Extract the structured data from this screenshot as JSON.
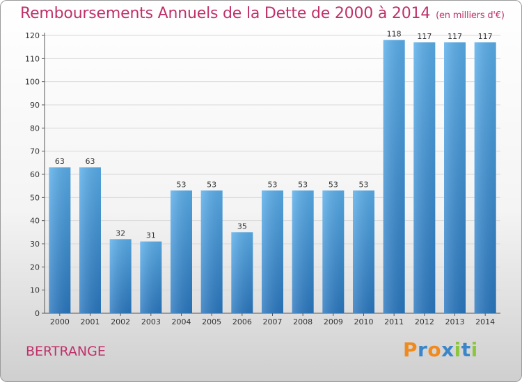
{
  "title": "Remboursements Annuels de la Dette de 2000 à 2014",
  "unit": "(en milliers d'€)",
  "place": "BERTRANGE",
  "logo": {
    "letters": [
      "P",
      "r",
      "o",
      "x",
      "i",
      "t",
      "i"
    ],
    "colors": [
      "#f08a1c",
      "#3a86c8",
      "#f08a1c",
      "#3a86c8",
      "#8cc63f",
      "#3a86c8",
      "#8cc63f"
    ]
  },
  "chart_data": {
    "type": "bar",
    "title": "Remboursements Annuels de la Dette de 2000 à 2014",
    "subtitle": "(en milliers d'€)",
    "xlabel": "",
    "ylabel": "",
    "categories": [
      "2000",
      "2001",
      "2002",
      "2003",
      "2004",
      "2005",
      "2006",
      "2007",
      "2008",
      "2009",
      "2010",
      "2011",
      "2012",
      "2013",
      "2014"
    ],
    "values": [
      63,
      63,
      32,
      31,
      53,
      53,
      35,
      53,
      53,
      53,
      53,
      118,
      117,
      117,
      117
    ],
    "data_labels": [
      "63",
      "63",
      "32",
      "31",
      "53",
      "53",
      "35",
      "53",
      "53",
      "53",
      "53",
      "118",
      "117",
      "117",
      "117"
    ],
    "yticks": [
      0,
      10,
      20,
      30,
      40,
      50,
      60,
      70,
      80,
      90,
      100,
      110,
      120
    ],
    "ylim": [
      0,
      120
    ],
    "grid": true,
    "legend": "none",
    "bar_color": "#4a9fe0",
    "bar_color_dark": "#2a78c0"
  }
}
